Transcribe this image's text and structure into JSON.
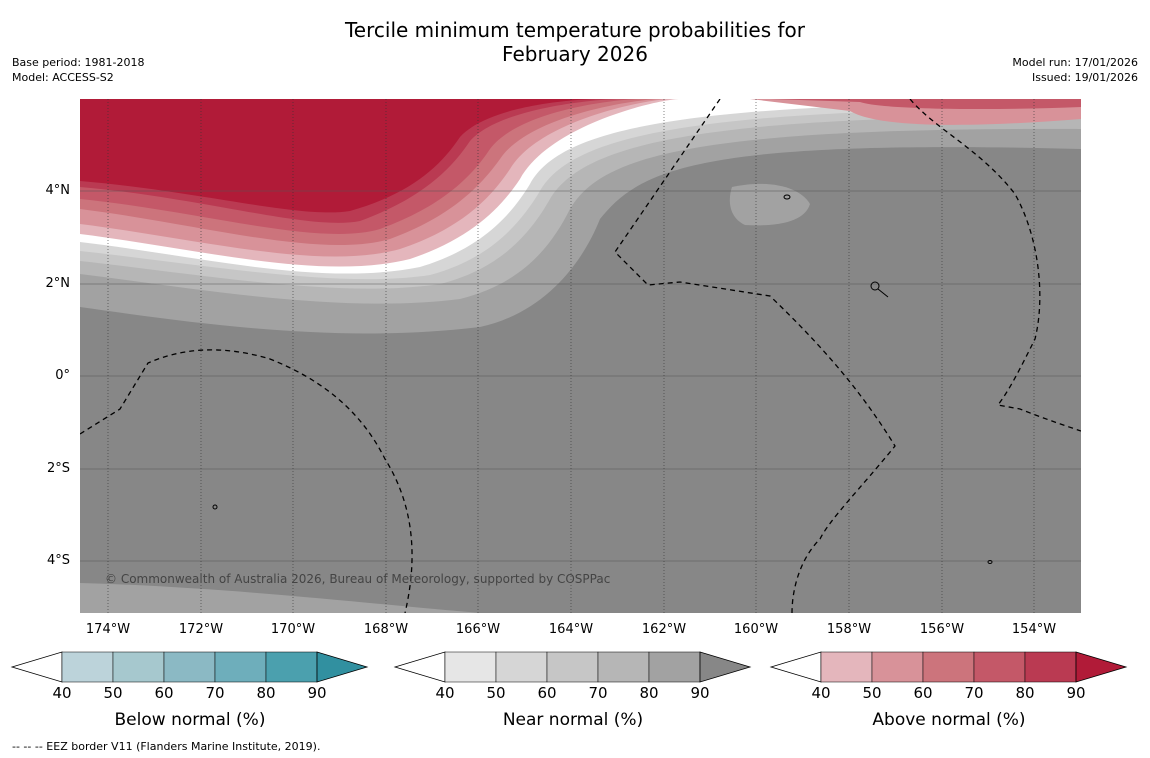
{
  "title_line1": "Tercile minimum temperature probabilities for",
  "title_line2": "February 2026",
  "meta_left": {
    "base_period": "Base period: 1981-2018",
    "model": "Model: ACCESS-S2"
  },
  "meta_right": {
    "model_run": "Model run: 17/01/2026",
    "issued": "Issued: 19/01/2026"
  },
  "map": {
    "lat_labels": [
      "4°N",
      "2°N",
      "0°",
      "2°S",
      "4°S"
    ],
    "lon_labels": [
      "174°W",
      "172°W",
      "170°W",
      "168°W",
      "166°W",
      "164°W",
      "162°W",
      "160°W",
      "158°W",
      "156°W",
      "154°W"
    ],
    "copyright": "© Commonwealth of Australia 2026, Bureau of Meteorology, supported by COSPPac",
    "near_normal_base_color": "#878787",
    "above_normal_peak_color": "#b11b38"
  },
  "colorbars": {
    "below": {
      "label": "Below normal (%)",
      "ticks": [
        "40",
        "50",
        "60",
        "70",
        "80",
        "90"
      ],
      "colors": [
        "#ffffff",
        "#bcd3da",
        "#a6c8ce",
        "#8bb9c4",
        "#6eaebb",
        "#4ba0ae",
        "#3190a0"
      ]
    },
    "near": {
      "label": "Near normal (%)",
      "ticks": [
        "40",
        "50",
        "60",
        "70",
        "80",
        "90"
      ],
      "colors": [
        "#ffffff",
        "#e6e6e6",
        "#d6d6d6",
        "#c6c6c6",
        "#b6b6b6",
        "#a2a2a2",
        "#878787"
      ]
    },
    "above": {
      "label": "Above normal (%)",
      "ticks": [
        "40",
        "50",
        "60",
        "70",
        "80",
        "90"
      ],
      "colors": [
        "#ffffff",
        "#e4b6bc",
        "#d89299",
        "#cc747c",
        "#c45868",
        "#ba3a52",
        "#b11b38"
      ]
    }
  },
  "footer": "-- -- -- EEZ border V11 (Flanders Marine Institute, 2019)."
}
